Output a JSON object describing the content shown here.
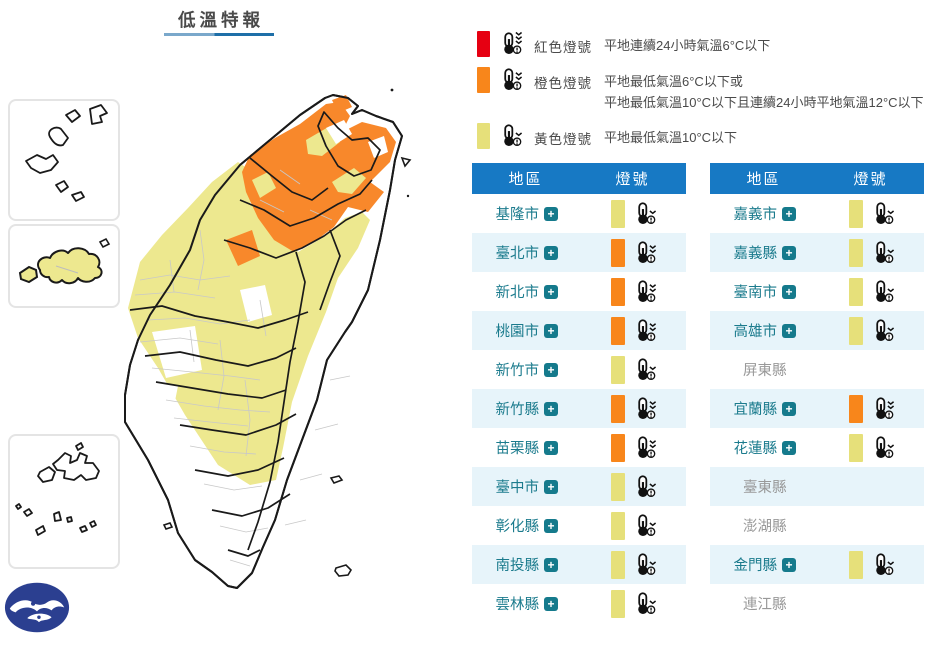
{
  "page_title": "低溫特報",
  "legend": [
    {
      "label": "紅色燈號",
      "color": "#E60012",
      "chevrons": 3,
      "desc": [
        "平地連續24小時氣溫6°C以下"
      ]
    },
    {
      "label": "橙色燈號",
      "color": "#F8861B",
      "chevrons": 2,
      "desc": [
        "平地最低氣溫6°C以下或",
        "平地最低氣溫10°C以下且連續24小時平地氣溫12°C以下"
      ]
    },
    {
      "label": "黃色燈號",
      "color": "#E6E07A",
      "chevrons": 1,
      "desc": [
        "平地最低氣溫10°C以下"
      ]
    }
  ],
  "table_headers": {
    "region": "地區",
    "signal": "燈號"
  },
  "expand_symbol": "+",
  "tables": [
    {
      "rows": [
        {
          "region": "基隆市",
          "signal": "yellow"
        },
        {
          "region": "臺北市",
          "signal": "orange"
        },
        {
          "region": "新北市",
          "signal": "orange"
        },
        {
          "region": "桃園市",
          "signal": "orange"
        },
        {
          "region": "新竹市",
          "signal": "yellow"
        },
        {
          "region": "新竹縣",
          "signal": "orange"
        },
        {
          "region": "苗栗縣",
          "signal": "orange"
        },
        {
          "region": "臺中市",
          "signal": "yellow"
        },
        {
          "region": "彰化縣",
          "signal": "yellow"
        },
        {
          "region": "南投縣",
          "signal": "yellow"
        },
        {
          "region": "雲林縣",
          "signal": "yellow"
        }
      ]
    },
    {
      "rows": [
        {
          "region": "嘉義市",
          "signal": "yellow"
        },
        {
          "region": "嘉義縣",
          "signal": "yellow"
        },
        {
          "region": "臺南市",
          "signal": "yellow"
        },
        {
          "region": "高雄市",
          "signal": "yellow"
        },
        {
          "region": "屏東縣",
          "signal": "none"
        },
        {
          "region": "宜蘭縣",
          "signal": "orange"
        },
        {
          "region": "花蓮縣",
          "signal": "yellow"
        },
        {
          "region": "臺東縣",
          "signal": "none"
        },
        {
          "region": "澎湖縣",
          "signal": "none"
        },
        {
          "region": "金門縣",
          "signal": "yellow"
        },
        {
          "region": "連江縣",
          "signal": "none"
        }
      ]
    }
  ],
  "colors": {
    "red": "#E60012",
    "orange": "#F8861B",
    "yellow": "#E6E07A",
    "map_orange": "#F8882B",
    "map_yellow": "#EDE88F",
    "header_blue": "#1779C4",
    "row_alt": "#E7F4FA",
    "region_link": "#1B7B8D",
    "inactive_text": "#999999",
    "logo_blue": "#2B3F90"
  }
}
